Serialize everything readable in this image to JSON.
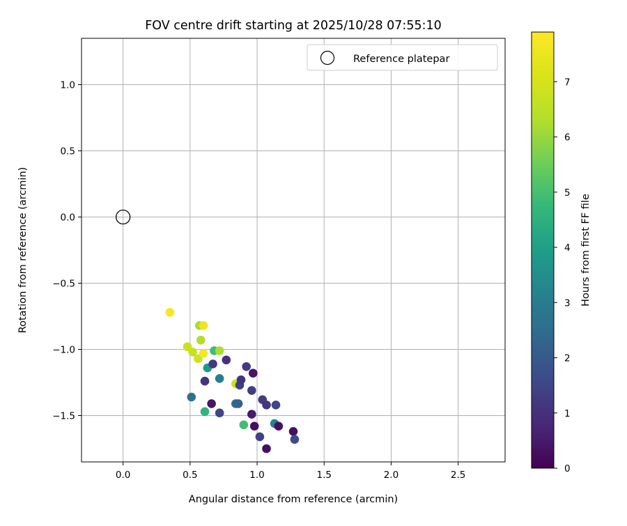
{
  "chart_data": {
    "type": "scatter",
    "title": "FOV centre drift starting at 2025/10/28 07:55:10",
    "xlabel": "Angular distance from reference (arcmin)",
    "ylabel": "Rotation from reference (arcmin)",
    "xlim": [
      -0.31,
      2.85
    ],
    "ylim": [
      -1.85,
      1.35
    ],
    "xticks": [
      0.0,
      0.5,
      1.0,
      1.5,
      2.0,
      2.5
    ],
    "xtick_labels": [
      "0.0",
      "0.5",
      "1.0",
      "1.5",
      "2.0",
      "2.5"
    ],
    "yticks": [
      -1.5,
      -1.0,
      -0.5,
      0.0,
      0.5,
      1.0
    ],
    "ytick_labels": [
      "−1.5",
      "−1.0",
      "−0.5",
      "0.0",
      "0.5",
      "1.0"
    ],
    "grid": true,
    "legend": {
      "position": "top-right",
      "entries": [
        "Reference platepar"
      ]
    },
    "reference_point": {
      "x": 0.0,
      "y": 0.0,
      "label": "Reference platepar"
    },
    "colorbar": {
      "label": "Hours from first FF file",
      "colormap": "viridis",
      "range": [
        0,
        7.9
      ],
      "ticks": [
        0,
        1,
        2,
        3,
        4,
        5,
        6,
        7
      ],
      "tick_labels": [
        "0",
        "1",
        "2",
        "3",
        "4",
        "5",
        "6",
        "7"
      ]
    },
    "points": [
      {
        "x": 0.35,
        "y": -0.72,
        "hours": 7.8
      },
      {
        "x": 0.57,
        "y": -0.82,
        "hours": 6.2
      },
      {
        "x": 0.6,
        "y": -0.82,
        "hours": 7.6
      },
      {
        "x": 0.48,
        "y": -0.98,
        "hours": 6.8
      },
      {
        "x": 0.52,
        "y": -1.02,
        "hours": 6.7
      },
      {
        "x": 0.56,
        "y": -1.07,
        "hours": 6.9
      },
      {
        "x": 0.58,
        "y": -0.93,
        "hours": 6.3
      },
      {
        "x": 0.6,
        "y": -1.03,
        "hours": 7.7
      },
      {
        "x": 0.68,
        "y": -1.01,
        "hours": 4.9
      },
      {
        "x": 0.72,
        "y": -1.01,
        "hours": 6.2
      },
      {
        "x": 0.63,
        "y": -1.14,
        "hours": 3.8
      },
      {
        "x": 0.67,
        "y": -1.11,
        "hours": 1.2
      },
      {
        "x": 0.77,
        "y": -1.08,
        "hours": 1.0
      },
      {
        "x": 0.61,
        "y": -1.24,
        "hours": 1.1
      },
      {
        "x": 0.72,
        "y": -1.22,
        "hours": 3.0
      },
      {
        "x": 0.51,
        "y": -1.36,
        "hours": 2.7
      },
      {
        "x": 0.66,
        "y": -1.41,
        "hours": 0.4
      },
      {
        "x": 0.61,
        "y": -1.47,
        "hours": 4.6
      },
      {
        "x": 0.72,
        "y": -1.48,
        "hours": 1.5
      },
      {
        "x": 0.84,
        "y": -1.41,
        "hours": 2.6
      },
      {
        "x": 0.86,
        "y": -1.41,
        "hours": 2.2
      },
      {
        "x": 0.84,
        "y": -1.26,
        "hours": 6.8
      },
      {
        "x": 0.87,
        "y": -1.27,
        "hours": 1.4
      },
      {
        "x": 0.88,
        "y": -1.23,
        "hours": 1.1
      },
      {
        "x": 0.92,
        "y": -1.13,
        "hours": 1.3
      },
      {
        "x": 0.97,
        "y": -1.18,
        "hours": 0.4
      },
      {
        "x": 0.96,
        "y": -1.31,
        "hours": 1.3
      },
      {
        "x": 0.96,
        "y": -1.49,
        "hours": 0.5
      },
      {
        "x": 0.9,
        "y": -1.57,
        "hours": 4.9
      },
      {
        "x": 0.98,
        "y": -1.58,
        "hours": 0.3
      },
      {
        "x": 1.04,
        "y": -1.38,
        "hours": 1.3
      },
      {
        "x": 1.07,
        "y": -1.42,
        "hours": 1.1
      },
      {
        "x": 1.14,
        "y": -1.42,
        "hours": 1.5
      },
      {
        "x": 1.02,
        "y": -1.66,
        "hours": 1.4
      },
      {
        "x": 1.07,
        "y": -1.75,
        "hours": 0.3
      },
      {
        "x": 1.13,
        "y": -1.56,
        "hours": 3.2
      },
      {
        "x": 1.16,
        "y": -1.58,
        "hours": 0.3
      },
      {
        "x": 1.27,
        "y": -1.62,
        "hours": 0.3
      },
      {
        "x": 1.28,
        "y": -1.68,
        "hours": 1.6
      }
    ]
  }
}
